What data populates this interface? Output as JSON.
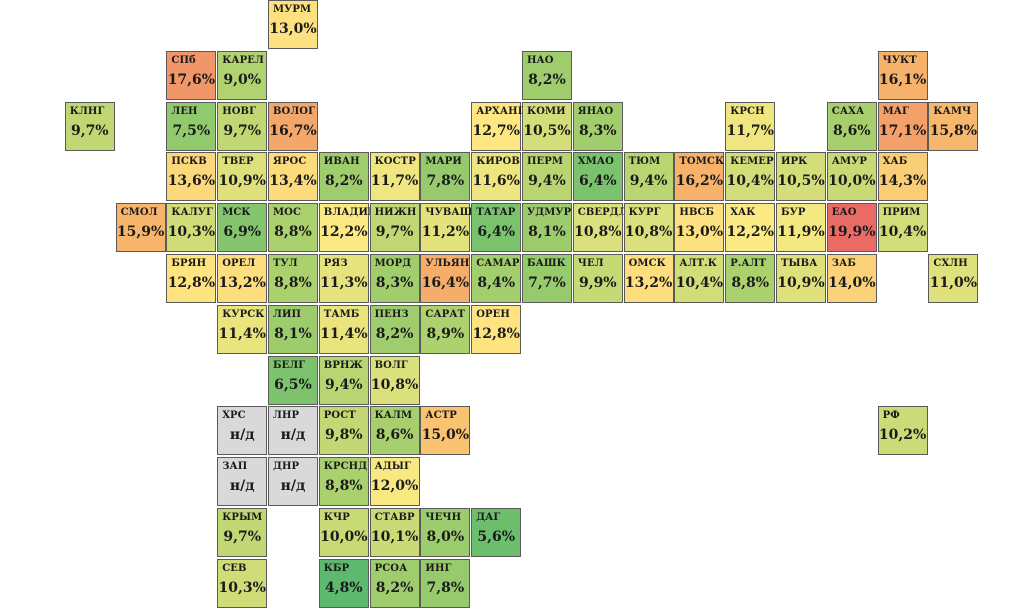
{
  "colors": {
    "nd": "#d9d9d9",
    "scale": [
      "#5cb96d",
      "#a6cf6d",
      "#ffeb84",
      "#f6b26b",
      "#ea6b66"
    ]
  },
  "regions": [
    {
      "row": 0,
      "col": 5,
      "code": "МУРМ",
      "value": "13,0%"
    },
    {
      "row": 1,
      "col": 3,
      "code": "СПб",
      "value": "17,6%"
    },
    {
      "row": 1,
      "col": 4,
      "code": "КАРЕЛ",
      "value": "9,0%"
    },
    {
      "row": 1,
      "col": 10,
      "code": "НАО",
      "value": "8,2%"
    },
    {
      "row": 1,
      "col": 17,
      "code": "ЧУКТ",
      "value": "16,1%"
    },
    {
      "row": 2,
      "col": 1,
      "code": "КЛНГ",
      "value": "9,7%"
    },
    {
      "row": 2,
      "col": 3,
      "code": "ЛЕН",
      "value": "7,5%"
    },
    {
      "row": 2,
      "col": 4,
      "code": "НОВГ",
      "value": "9,7%"
    },
    {
      "row": 2,
      "col": 5,
      "code": "ВОЛОГ",
      "value": "16,7%"
    },
    {
      "row": 2,
      "col": 9,
      "code": "АРХАНГ",
      "value": "12,7%"
    },
    {
      "row": 2,
      "col": 10,
      "code": "КОМИ",
      "value": "10,5%"
    },
    {
      "row": 2,
      "col": 11,
      "code": "ЯНАО",
      "value": "8,3%"
    },
    {
      "row": 2,
      "col": 14,
      "code": "КРСН",
      "value": "11,7%"
    },
    {
      "row": 2,
      "col": 16,
      "code": "САХА",
      "value": "8,6%"
    },
    {
      "row": 2,
      "col": 17,
      "code": "МАГ",
      "value": "17,1%"
    },
    {
      "row": 2,
      "col": 18,
      "code": "КАМЧ",
      "value": "15,8%"
    },
    {
      "row": 3,
      "col": 3,
      "code": "ПСКВ",
      "value": "13,6%"
    },
    {
      "row": 3,
      "col": 4,
      "code": "ТВЕР",
      "value": "10,9%"
    },
    {
      "row": 3,
      "col": 5,
      "code": "ЯРОС",
      "value": "13,4%"
    },
    {
      "row": 3,
      "col": 6,
      "code": "ИВАН",
      "value": "8,2%"
    },
    {
      "row": 3,
      "col": 7,
      "code": "КОСТР",
      "value": "11,7%"
    },
    {
      "row": 3,
      "col": 8,
      "code": "МАРИ",
      "value": "7,8%"
    },
    {
      "row": 3,
      "col": 9,
      "code": "КИРОВ",
      "value": "11,6%"
    },
    {
      "row": 3,
      "col": 10,
      "code": "ПЕРМ",
      "value": "9,4%"
    },
    {
      "row": 3,
      "col": 11,
      "code": "ХМАО",
      "value": "6,4%"
    },
    {
      "row": 3,
      "col": 12,
      "code": "ТЮМ",
      "value": "9,4%"
    },
    {
      "row": 3,
      "col": 13,
      "code": "ТОМСК",
      "value": "16,2%"
    },
    {
      "row": 3,
      "col": 14,
      "code": "КЕМЕР",
      "value": "10,4%"
    },
    {
      "row": 3,
      "col": 15,
      "code": "ИРК",
      "value": "10,5%"
    },
    {
      "row": 3,
      "col": 16,
      "code": "АМУР",
      "value": "10,0%"
    },
    {
      "row": 3,
      "col": 17,
      "code": "ХАБ",
      "value": "14,3%"
    },
    {
      "row": 4,
      "col": 2,
      "code": "СМОЛ",
      "value": "15,9%"
    },
    {
      "row": 4,
      "col": 3,
      "code": "КАЛУГ",
      "value": "10,3%"
    },
    {
      "row": 4,
      "col": 4,
      "code": "МСК",
      "value": "6,9%"
    },
    {
      "row": 4,
      "col": 5,
      "code": "МОС",
      "value": "8,8%"
    },
    {
      "row": 4,
      "col": 6,
      "code": "ВЛАДИМ",
      "value": "12,2%"
    },
    {
      "row": 4,
      "col": 7,
      "code": "НИЖН",
      "value": "9,7%"
    },
    {
      "row": 4,
      "col": 8,
      "code": "ЧУВАШ",
      "value": "11,2%"
    },
    {
      "row": 4,
      "col": 9,
      "code": "ТАТАР",
      "value": "6,4%"
    },
    {
      "row": 4,
      "col": 10,
      "code": "УДМУР",
      "value": "8,1%"
    },
    {
      "row": 4,
      "col": 11,
      "code": "СВЕРДЛ",
      "value": "10,8%"
    },
    {
      "row": 4,
      "col": 12,
      "code": "КУРГ",
      "value": "10,8%"
    },
    {
      "row": 4,
      "col": 13,
      "code": "НВСБ",
      "value": "13,0%"
    },
    {
      "row": 4,
      "col": 14,
      "code": "ХАК",
      "value": "12,2%"
    },
    {
      "row": 4,
      "col": 15,
      "code": "БУР",
      "value": "11,9%"
    },
    {
      "row": 4,
      "col": 16,
      "code": "ЕАО",
      "value": "19,9%"
    },
    {
      "row": 4,
      "col": 17,
      "code": "ПРИМ",
      "value": "10,4%"
    },
    {
      "row": 5,
      "col": 3,
      "code": "БРЯН",
      "value": "12,8%"
    },
    {
      "row": 5,
      "col": 4,
      "code": "ОРЕЛ",
      "value": "13,2%"
    },
    {
      "row": 5,
      "col": 5,
      "code": "ТУЛ",
      "value": "8,8%"
    },
    {
      "row": 5,
      "col": 6,
      "code": "РЯЗ",
      "value": "11,3%"
    },
    {
      "row": 5,
      "col": 7,
      "code": "МОРД",
      "value": "8,3%"
    },
    {
      "row": 5,
      "col": 8,
      "code": "УЛЬЯН",
      "value": "16,4%"
    },
    {
      "row": 5,
      "col": 9,
      "code": "САМАР",
      "value": "8,4%"
    },
    {
      "row": 5,
      "col": 10,
      "code": "БАШК",
      "value": "7,7%"
    },
    {
      "row": 5,
      "col": 11,
      "code": "ЧЕЛ",
      "value": "9,9%"
    },
    {
      "row": 5,
      "col": 12,
      "code": "ОМСК",
      "value": "13,2%"
    },
    {
      "row": 5,
      "col": 13,
      "code": "АЛТ.К",
      "value": "10,4%"
    },
    {
      "row": 5,
      "col": 14,
      "code": "Р.АЛТ",
      "value": "8,8%"
    },
    {
      "row": 5,
      "col": 15,
      "code": "ТЫВА",
      "value": "10,9%"
    },
    {
      "row": 5,
      "col": 16,
      "code": "ЗАБ",
      "value": "14,0%"
    },
    {
      "row": 5,
      "col": 18,
      "code": "СХЛН",
      "value": "11,0%"
    },
    {
      "row": 6,
      "col": 4,
      "code": "КУРСК",
      "value": "11,4%"
    },
    {
      "row": 6,
      "col": 5,
      "code": "ЛИП",
      "value": "8,1%"
    },
    {
      "row": 6,
      "col": 6,
      "code": "ТАМБ",
      "value": "11,4%"
    },
    {
      "row": 6,
      "col": 7,
      "code": "ПЕНЗ",
      "value": "8,2%"
    },
    {
      "row": 6,
      "col": 8,
      "code": "САРАТ",
      "value": "8,9%"
    },
    {
      "row": 6,
      "col": 9,
      "code": "ОРЕН",
      "value": "12,8%"
    },
    {
      "row": 7,
      "col": 5,
      "code": "БЕЛГ",
      "value": "6,5%"
    },
    {
      "row": 7,
      "col": 6,
      "code": "ВРНЖ",
      "value": "9,4%"
    },
    {
      "row": 7,
      "col": 7,
      "code": "ВОЛГ",
      "value": "10,8%"
    },
    {
      "row": 8,
      "col": 4,
      "code": "ХРС",
      "value": "н/д"
    },
    {
      "row": 8,
      "col": 5,
      "code": "ЛНР",
      "value": "н/д"
    },
    {
      "row": 8,
      "col": 6,
      "code": "РОСТ",
      "value": "9,8%"
    },
    {
      "row": 8,
      "col": 7,
      "code": "КАЛМ",
      "value": "8,6%"
    },
    {
      "row": 8,
      "col": 8,
      "code": "АСТР",
      "value": "15,0%"
    },
    {
      "row": 8,
      "col": 17,
      "code": "РФ",
      "value": "10,2%"
    },
    {
      "row": 9,
      "col": 4,
      "code": "ЗАП",
      "value": "н/д"
    },
    {
      "row": 9,
      "col": 5,
      "code": "ДНР",
      "value": "н/д"
    },
    {
      "row": 9,
      "col": 6,
      "code": "КРСНД",
      "value": "8,8%"
    },
    {
      "row": 9,
      "col": 7,
      "code": "АДЫГ",
      "value": "12,0%"
    },
    {
      "row": 10,
      "col": 4,
      "code": "КРЫМ",
      "value": "9,7%"
    },
    {
      "row": 10,
      "col": 6,
      "code": "КЧР",
      "value": "10,0%"
    },
    {
      "row": 10,
      "col": 7,
      "code": "СТАВР",
      "value": "10,1%"
    },
    {
      "row": 10,
      "col": 8,
      "code": "ЧЕЧН",
      "value": "8,0%"
    },
    {
      "row": 10,
      "col": 9,
      "code": "ДАГ",
      "value": "5,6%"
    },
    {
      "row": 11,
      "col": 4,
      "code": "СЕВ",
      "value": "10,3%"
    },
    {
      "row": 11,
      "col": 6,
      "code": "КБР",
      "value": "4,8%"
    },
    {
      "row": 11,
      "col": 7,
      "code": "РСОА",
      "value": "8,2%"
    },
    {
      "row": 11,
      "col": 8,
      "code": "ИНГ",
      "value": "7,8%"
    }
  ]
}
